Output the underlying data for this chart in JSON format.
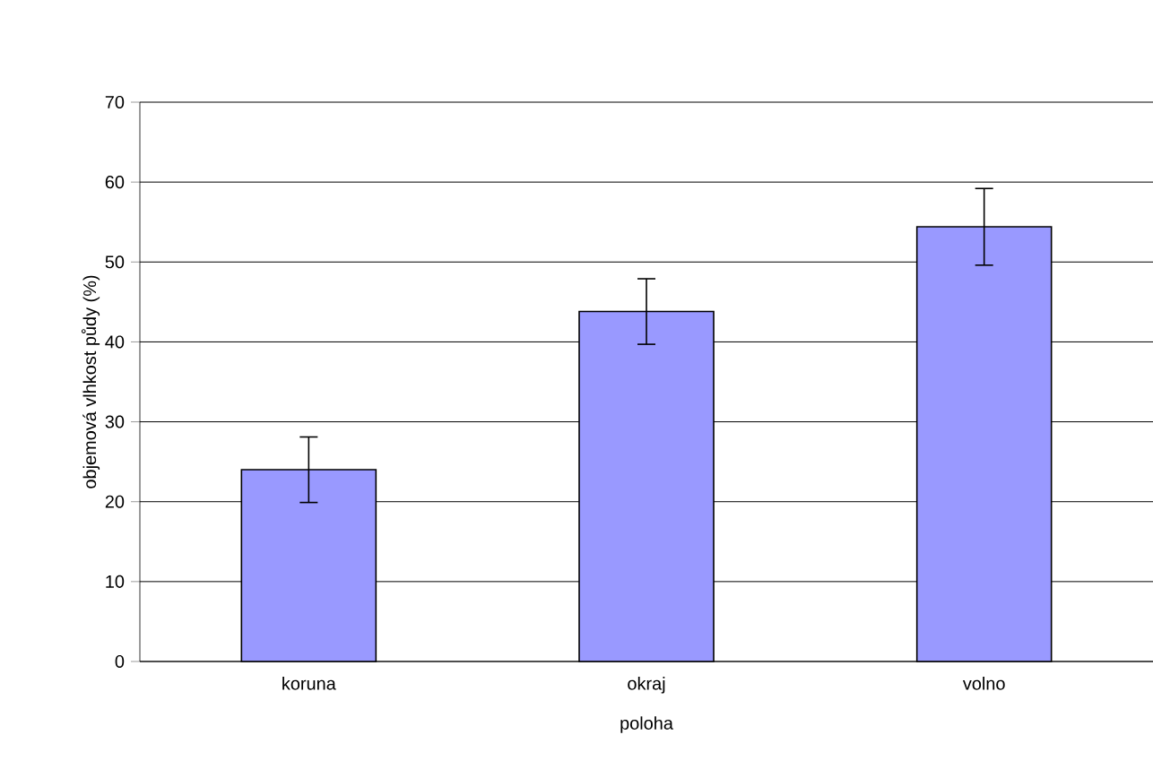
{
  "chart_data": {
    "type": "bar",
    "xlabel": "poloha",
    "ylabel": "objemová vlhkost půdy (%)",
    "categories": [
      "koruna",
      "okraj",
      "volno"
    ],
    "values": [
      24.0,
      43.8,
      54.4
    ],
    "errors": [
      4.1,
      4.1,
      4.8
    ],
    "color": "#9999ff",
    "ylim": [
      0,
      70
    ],
    "yticks": [
      0,
      10,
      20,
      30,
      40,
      50,
      60,
      70
    ],
    "grid": "y"
  }
}
